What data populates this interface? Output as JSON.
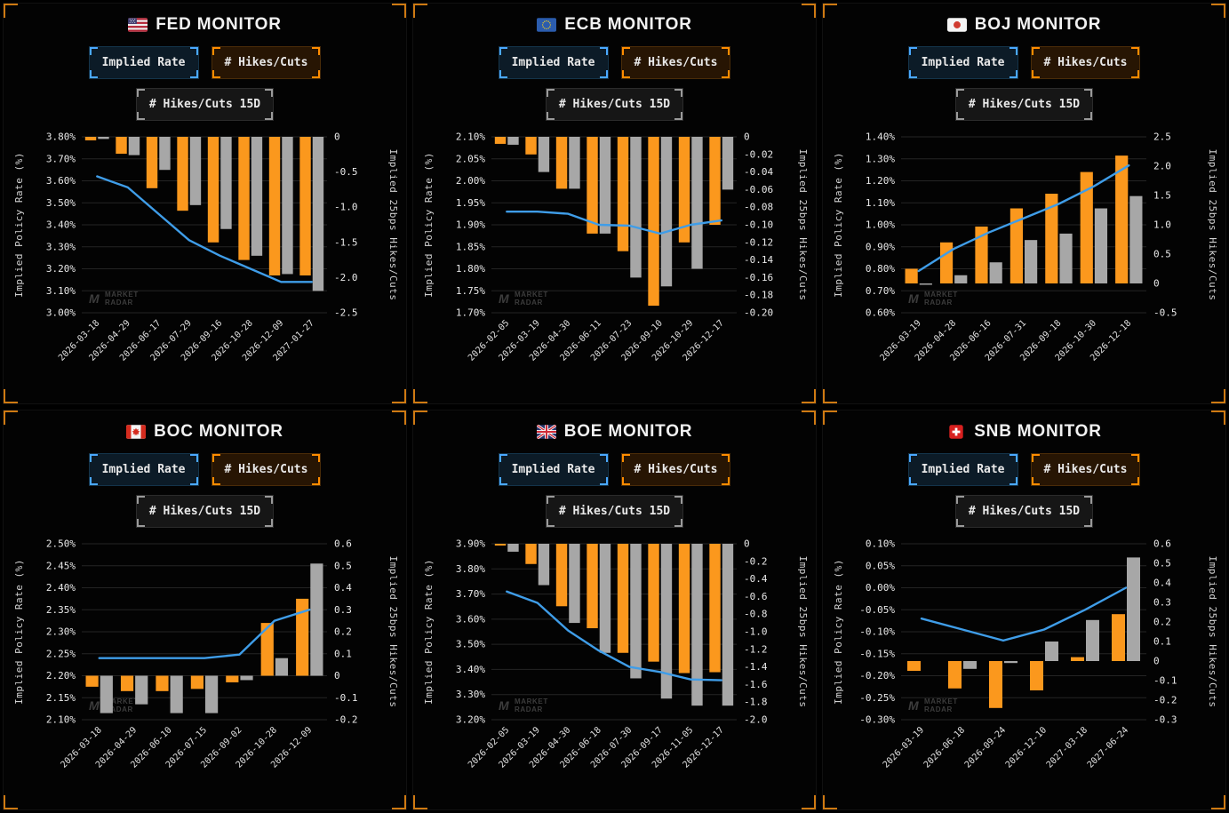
{
  "colors": {
    "orange": "#fb981d",
    "gray": "#a7a7a7",
    "blue": "#3f9de8",
    "grid": "#242424",
    "tick": "#eaeaea",
    "axisTitle": "#d2d2d2",
    "dateTick": "#e0e0e0",
    "watermark": "#3c3c3c",
    "panel_corner": "#cf7a12",
    "accent_blue": "#4aa8ff",
    "accent_orange": "#ff8c00",
    "accent_gray": "#9a9a9a"
  },
  "watermark": {
    "logo": "M",
    "line1": "MARKET",
    "line2": "RADAR"
  },
  "panels": [
    {
      "id": "fed",
      "flag": "us",
      "title": "FED MONITOR",
      "buttons": [
        {
          "label": "Implied Rate",
          "accent": "blue",
          "selected": true
        },
        {
          "label": "# Hikes/Cuts",
          "accent": "orange",
          "selected": true
        },
        {
          "label": "# Hikes/Cuts 15D",
          "accent": "gray",
          "selected": false
        }
      ],
      "chart_data": {
        "type": "bar+line",
        "x": [
          "2026-03-18",
          "2026-04-29",
          "2026-06-17",
          "2026-07-29",
          "2026-09-16",
          "2026-10-28",
          "2026-12-09",
          "2027-01-27"
        ],
        "left_axis": {
          "label": "Implied Policy Rate (%)",
          "min": 3.0,
          "max": 3.8,
          "step": 0.1
        },
        "right_axis": {
          "label": "Implied 25bps Hikes/Cuts",
          "min": -2.5,
          "max": 0,
          "step": 0.5
        },
        "series": [
          {
            "name": "# Hikes/Cuts",
            "type": "bar",
            "axis": "right",
            "color": "orange",
            "values": [
              -0.05,
              -0.24,
              -0.73,
              -1.05,
              -1.5,
              -1.75,
              -1.97,
              -1.97
            ]
          },
          {
            "name": "# Hikes/Cuts 15D",
            "type": "bar",
            "axis": "right",
            "color": "gray",
            "values": [
              -0.03,
              -0.26,
              -0.47,
              -0.97,
              -1.31,
              -1.69,
              -1.95,
              -2.19
            ]
          },
          {
            "name": "Implied Rate",
            "type": "line",
            "axis": "left",
            "color": "blue",
            "values": [
              3.62,
              3.57,
              3.45,
              3.33,
              3.26,
              3.2,
              3.14,
              3.14
            ]
          }
        ]
      }
    },
    {
      "id": "ecb",
      "flag": "eu",
      "title": "ECB MONITOR",
      "buttons": [
        {
          "label": "Implied Rate",
          "accent": "blue",
          "selected": true
        },
        {
          "label": "# Hikes/Cuts",
          "accent": "orange",
          "selected": true
        },
        {
          "label": "# Hikes/Cuts 15D",
          "accent": "gray",
          "selected": false
        }
      ],
      "chart_data": {
        "type": "bar+line",
        "x": [
          "2026-02-05",
          "2026-03-19",
          "2026-04-30",
          "2026-06-11",
          "2026-07-23",
          "2026-09-10",
          "2026-10-29",
          "2026-12-17"
        ],
        "left_axis": {
          "label": "Implied Policy Rate (%)",
          "min": 1.7,
          "max": 2.1,
          "step": 0.05
        },
        "right_axis": {
          "label": "Implied 25bps Hikes/Cuts",
          "min": -0.2,
          "max": 0,
          "step": 0.02
        },
        "series": [
          {
            "name": "# Hikes/Cuts",
            "type": "bar",
            "axis": "right",
            "color": "orange",
            "values": [
              -0.008,
              -0.02,
              -0.059,
              -0.11,
              -0.13,
              -0.192,
              -0.12,
              -0.1
            ]
          },
          {
            "name": "# Hikes/Cuts 15D",
            "type": "bar",
            "axis": "right",
            "color": "gray",
            "values": [
              -0.009,
              -0.04,
              -0.059,
              -0.11,
              -0.16,
              -0.17,
              -0.15,
              -0.06
            ]
          },
          {
            "name": "Implied Rate",
            "type": "line",
            "axis": "left",
            "color": "blue",
            "values": [
              1.93,
              1.93,
              1.925,
              1.9,
              1.898,
              1.88,
              1.9,
              1.91
            ]
          }
        ]
      }
    },
    {
      "id": "boj",
      "flag": "jp",
      "title": "BOJ MONITOR",
      "buttons": [
        {
          "label": "Implied Rate",
          "accent": "blue",
          "selected": true
        },
        {
          "label": "# Hikes/Cuts",
          "accent": "orange",
          "selected": true
        },
        {
          "label": "# Hikes/Cuts 15D",
          "accent": "gray",
          "selected": false
        }
      ],
      "chart_data": {
        "type": "bar+line",
        "x": [
          "2026-03-19",
          "2026-04-28",
          "2026-06-16",
          "2026-07-31",
          "2026-09-18",
          "2026-10-30",
          "2026-12-18"
        ],
        "left_axis": {
          "label": "Implied Policy Rate (%)",
          "min": 0.6,
          "max": 1.4,
          "step": 0.1
        },
        "right_axis": {
          "label": "Implied 25bps Hikes/Cuts",
          "min": -0.5,
          "max": 2.5,
          "step": 0.5
        },
        "series": [
          {
            "name": "# Hikes/Cuts",
            "type": "bar",
            "axis": "right",
            "color": "orange",
            "values": [
              0.25,
              0.7,
              0.97,
              1.28,
              1.53,
              1.9,
              2.18
            ]
          },
          {
            "name": "# Hikes/Cuts 15D",
            "type": "bar",
            "axis": "right",
            "color": "gray",
            "values": [
              -0.02,
              0.14,
              0.36,
              0.74,
              0.85,
              1.28,
              1.49
            ]
          },
          {
            "name": "Implied Rate",
            "type": "line",
            "axis": "left",
            "color": "blue",
            "values": [
              0.79,
              0.89,
              0.965,
              1.03,
              1.095,
              1.175,
              1.27
            ]
          }
        ]
      }
    },
    {
      "id": "boc",
      "flag": "ca",
      "title": "BOC MONITOR",
      "buttons": [
        {
          "label": "Implied Rate",
          "accent": "blue",
          "selected": true
        },
        {
          "label": "# Hikes/Cuts",
          "accent": "orange",
          "selected": true
        },
        {
          "label": "# Hikes/Cuts 15D",
          "accent": "gray",
          "selected": false
        }
      ],
      "chart_data": {
        "type": "bar+line",
        "x": [
          "2026-03-18",
          "2026-04-29",
          "2026-06-10",
          "2026-07-15",
          "2026-09-02",
          "2026-10-28",
          "2026-12-09"
        ],
        "left_axis": {
          "label": "Implied Policy Rate (%)",
          "min": 2.1,
          "max": 2.5,
          "step": 0.05
        },
        "right_axis": {
          "label": "Implied 25bps Hikes/Cuts",
          "min": -0.2,
          "max": 0.6,
          "step": 0.1
        },
        "series": [
          {
            "name": "# Hikes/Cuts",
            "type": "bar",
            "axis": "right",
            "color": "orange",
            "values": [
              -0.05,
              -0.07,
              -0.07,
              -0.06,
              -0.03,
              0.24,
              0.35
            ]
          },
          {
            "name": "# Hikes/Cuts 15D",
            "type": "bar",
            "axis": "right",
            "color": "gray",
            "values": [
              -0.17,
              -0.13,
              -0.17,
              -0.17,
              -0.02,
              0.08,
              0.51
            ]
          },
          {
            "name": "Implied Rate",
            "type": "line",
            "axis": "left",
            "color": "blue",
            "values": [
              2.24,
              2.24,
              2.24,
              2.24,
              2.248,
              2.325,
              2.35
            ]
          }
        ]
      }
    },
    {
      "id": "boe",
      "flag": "gb",
      "title": "BOE MONITOR",
      "buttons": [
        {
          "label": "Implied Rate",
          "accent": "blue",
          "selected": true
        },
        {
          "label": "# Hikes/Cuts",
          "accent": "orange",
          "selected": true
        },
        {
          "label": "# Hikes/Cuts 15D",
          "accent": "gray",
          "selected": false
        }
      ],
      "chart_data": {
        "type": "bar+line",
        "x": [
          "2026-02-05",
          "2026-03-19",
          "2026-04-30",
          "2026-06-18",
          "2026-07-30",
          "2026-09-17",
          "2026-11-05",
          "2026-12-17"
        ],
        "left_axis": {
          "label": "Implied Policy Rate (%)",
          "min": 3.2,
          "max": 3.9,
          "step": 0.1
        },
        "right_axis": {
          "label": "Implied 25bps Hikes/Cuts",
          "min": -2.0,
          "max": 0,
          "step": 0.2
        },
        "series": [
          {
            "name": "# Hikes/Cuts",
            "type": "bar",
            "axis": "right",
            "color": "orange",
            "values": [
              -0.02,
              -0.23,
              -0.71,
              -0.96,
              -1.24,
              -1.34,
              -1.47,
              -1.46
            ]
          },
          {
            "name": "# Hikes/Cuts 15D",
            "type": "bar",
            "axis": "right",
            "color": "gray",
            "values": [
              -0.09,
              -0.47,
              -0.9,
              -1.24,
              -1.53,
              -1.76,
              -1.84,
              -1.84
            ]
          },
          {
            "name": "Implied Rate",
            "type": "line",
            "axis": "left",
            "color": "blue",
            "values": [
              3.71,
              3.665,
              3.555,
              3.475,
              3.41,
              3.39,
              3.36,
              3.357
            ]
          }
        ]
      }
    },
    {
      "id": "snb",
      "flag": "ch",
      "title": "SNB MONITOR",
      "buttons": [
        {
          "label": "Implied Rate",
          "accent": "blue",
          "selected": true
        },
        {
          "label": "# Hikes/Cuts",
          "accent": "orange",
          "selected": true
        },
        {
          "label": "# Hikes/Cuts 15D",
          "accent": "gray",
          "selected": false
        }
      ],
      "chart_data": {
        "type": "bar+line",
        "x": [
          "2026-03-19",
          "2026-06-18",
          "2026-09-24",
          "2026-12-10",
          "2027-03-18",
          "2027-06-24"
        ],
        "left_axis": {
          "label": "Implied Policy Rate (%)",
          "min": -0.3,
          "max": 0.1,
          "step": 0.05
        },
        "right_axis": {
          "label": "Implied 25bps Hikes/Cuts",
          "min": -0.3,
          "max": 0.6,
          "step": 0.1
        },
        "series": [
          {
            "name": "# Hikes/Cuts",
            "type": "bar",
            "axis": "right",
            "color": "orange",
            "values": [
              -0.05,
              -0.14,
              -0.24,
              -0.15,
              0.02,
              0.24
            ]
          },
          {
            "name": "# Hikes/Cuts 15D",
            "type": "bar",
            "axis": "right",
            "color": "gray",
            "values": [
              0.0,
              -0.04,
              -0.01,
              0.1,
              0.21,
              0.53
            ]
          },
          {
            "name": "Implied Rate",
            "type": "line",
            "axis": "left",
            "color": "blue",
            "values": [
              -0.07,
              -0.095,
              -0.12,
              -0.095,
              -0.05,
              0.0
            ]
          }
        ]
      }
    }
  ]
}
